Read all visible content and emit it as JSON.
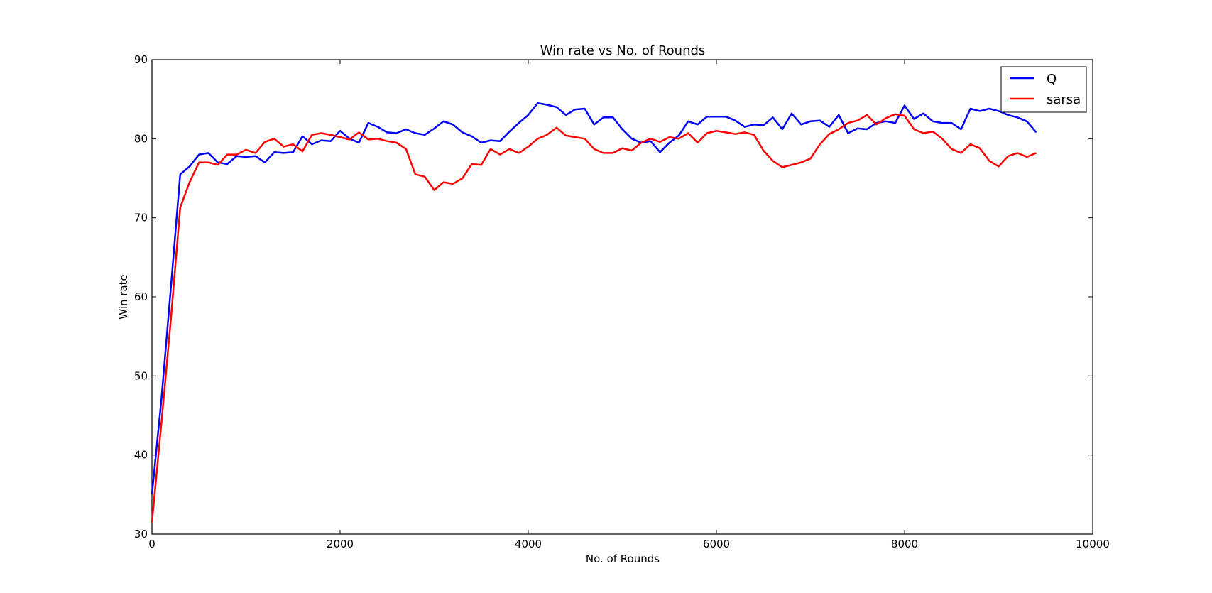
{
  "chart_data": {
    "type": "line",
    "title": "Win rate vs No. of Rounds",
    "xlabel": "No. of Rounds",
    "ylabel": "Win rate",
    "xlim": [
      0,
      10000
    ],
    "ylim": [
      30,
      90
    ],
    "xticks": [
      0,
      2000,
      4000,
      6000,
      8000,
      10000
    ],
    "yticks": [
      30,
      40,
      50,
      60,
      70,
      80,
      90
    ],
    "grid": false,
    "legend": "top-right",
    "x": [
      0,
      100,
      200,
      300,
      400,
      500,
      600,
      700,
      800,
      900,
      1000,
      1100,
      1200,
      1300,
      1400,
      1500,
      1600,
      1700,
      1800,
      1900,
      2000,
      2100,
      2200,
      2300,
      2400,
      2500,
      2600,
      2700,
      2800,
      2900,
      3000,
      3100,
      3200,
      3300,
      3400,
      3500,
      3600,
      3700,
      3800,
      3900,
      4000,
      4100,
      4200,
      4300,
      4400,
      4500,
      4600,
      4700,
      4800,
      4900,
      5000,
      5100,
      5200,
      5300,
      5400,
      5500,
      5600,
      5700,
      5800,
      5900,
      6000,
      6100,
      6200,
      6300,
      6400,
      6500,
      6600,
      6700,
      6800,
      6900,
      7000,
      7100,
      7200,
      7300,
      7400,
      7500,
      7600,
      7700,
      7800,
      7900,
      8000,
      8100,
      8200,
      8300,
      8400,
      8500,
      8600,
      8700,
      8800,
      8900,
      9000,
      9100,
      9200,
      9300,
      9400
    ],
    "series": [
      {
        "name": "Q",
        "color": "#0000ff",
        "values": [
          35,
          47,
          61,
          75.5,
          76.5,
          78,
          78.2,
          77,
          76.8,
          77.8,
          77.7,
          77.8,
          77,
          78.3,
          78.2,
          78.3,
          80.3,
          79.3,
          79.8,
          79.7,
          81,
          80,
          79.5,
          82,
          81.5,
          80.8,
          80.7,
          81.2,
          80.7,
          80.5,
          81.3,
          82.2,
          81.8,
          80.8,
          80.3,
          79.5,
          79.8,
          79.7,
          80.9,
          82,
          83,
          84.5,
          84.3,
          84,
          83,
          83.7,
          83.8,
          81.8,
          82.7,
          82.7,
          81.2,
          80,
          79.5,
          79.7,
          78.3,
          79.5,
          80.4,
          82.2,
          81.8,
          82.8,
          82.8,
          82.8,
          82.3,
          81.5,
          81.8,
          81.7,
          82.7,
          81.2,
          83.2,
          81.8,
          82.2,
          82.3,
          81.5,
          83,
          80.7,
          81.3,
          81.2,
          82,
          82.2,
          82,
          84.2,
          82.5,
          83.2,
          82.2,
          82,
          82,
          81.2,
          83.8,
          83.5,
          83.8,
          83.5,
          83,
          82.7,
          82.2,
          80.8
        ]
      },
      {
        "name": "sarsa",
        "color": "#ff0000",
        "values": [
          31.5,
          44,
          57,
          71.3,
          74.5,
          77,
          77,
          76.7,
          78,
          78,
          78.6,
          78.2,
          79.6,
          80,
          79,
          79.3,
          78.4,
          80.5,
          80.7,
          80.5,
          80.2,
          79.9,
          80.8,
          79.9,
          80,
          79.7,
          79.5,
          78.7,
          75.5,
          75.2,
          73.5,
          74.5,
          74.3,
          75,
          76.8,
          76.7,
          78.7,
          78,
          78.7,
          78.2,
          79,
          80,
          80.5,
          81.4,
          80.4,
          80.2,
          80,
          78.7,
          78.2,
          78.2,
          78.8,
          78.5,
          79.5,
          80,
          79.6,
          80.2,
          80,
          80.7,
          79.5,
          80.7,
          81,
          80.8,
          80.6,
          80.8,
          80.5,
          78.5,
          77.2,
          76.4,
          76.7,
          77,
          77.5,
          79.3,
          80.6,
          81.2,
          82,
          82.3,
          83,
          81.8,
          82.6,
          83.1,
          82.9,
          81.2,
          80.7,
          80.9,
          80,
          78.7,
          78.2,
          79.3,
          78.8,
          77.2,
          76.5,
          77.8,
          78.2,
          77.7,
          78.2
        ]
      }
    ]
  }
}
